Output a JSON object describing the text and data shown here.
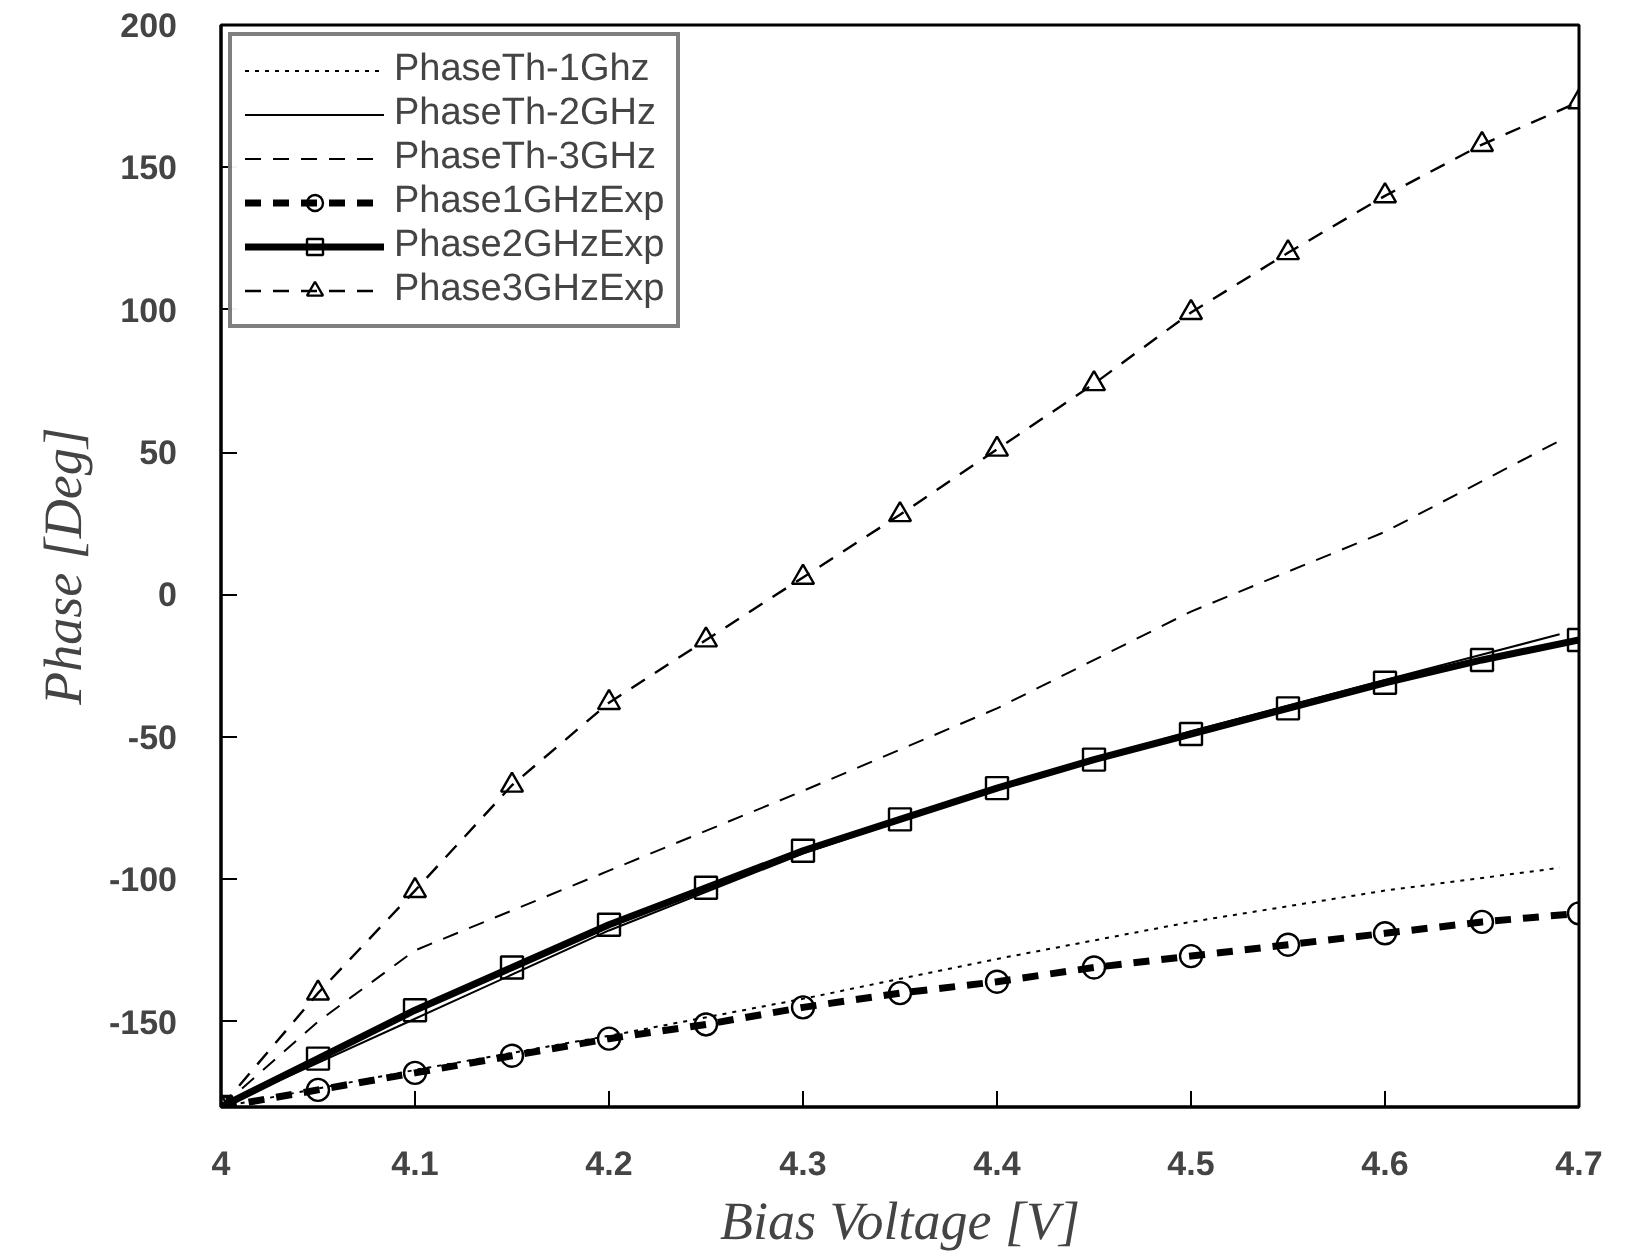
{
  "chart_data": {
    "type": "line",
    "xlabel": "Bias Voltage [V]",
    "ylabel": "Phase [Deg]",
    "x": [
      4.0,
      4.05,
      4.1,
      4.15,
      4.2,
      4.25,
      4.3,
      4.35,
      4.4,
      4.45,
      4.5,
      4.55,
      4.6,
      4.65,
      4.7
    ],
    "xlim": [
      4,
      4.7
    ],
    "xticks": [
      4,
      4.1,
      4.2,
      4.3,
      4.4,
      4.5,
      4.6,
      4.7
    ],
    "ylim": [
      -180,
      200
    ],
    "yticks": [
      -150,
      -100,
      -50,
      0,
      50,
      100,
      150,
      200
    ],
    "grid": false,
    "legend": "top left",
    "series": [
      {
        "name": "PhaseTh-1Ghz",
        "color": "#000000",
        "line_style": "dotted",
        "marker": "none",
        "x": [
          4.0,
          4.1,
          4.2,
          4.3,
          4.4,
          4.5,
          4.6,
          4.69
        ],
        "values": [
          -180,
          -167,
          -155,
          -142,
          -128,
          -115,
          -104,
          -96
        ]
      },
      {
        "name": "PhaseTh-2GHz",
        "color": "#000000",
        "line_style": "solid",
        "marker": "none",
        "x": [
          4.0,
          4.1,
          4.2,
          4.3,
          4.4,
          4.5,
          4.6,
          4.69
        ],
        "values": [
          -180,
          -149,
          -118,
          -91,
          -68,
          -48,
          -30,
          -14
        ]
      },
      {
        "name": "PhaseTh-3GHz",
        "color": "#000000",
        "line_style": "dashed",
        "marker": "none",
        "x": [
          4.0,
          4.05,
          4.1,
          4.2,
          4.3,
          4.4,
          4.5,
          4.6,
          4.69
        ],
        "values": [
          -180,
          -150,
          -125,
          -97,
          -69,
          -40,
          -6,
          22,
          54
        ]
      },
      {
        "name": "Phase1GHzExp",
        "color": "#000000",
        "line_style": "dashed",
        "marker": "circle",
        "values": [
          -180,
          -174,
          -168,
          -162,
          -156,
          -151,
          -145,
          -140,
          -136,
          -131,
          -127,
          -123,
          -119,
          -115,
          -112
        ]
      },
      {
        "name": "Phase2GHzExp",
        "color": "#000000",
        "line_style": "solid",
        "marker": "square",
        "values": [
          -180,
          -163,
          -146,
          -131,
          -116,
          -103,
          -90,
          -79,
          -68,
          -58,
          -49,
          -40,
          -31,
          -23,
          -16
        ]
      },
      {
        "name": "Phase3GHzExp",
        "color": "#000000",
        "line_style": "dashed",
        "marker": "triangle",
        "values": [
          -180,
          -140,
          -104,
          -67,
          -38,
          -16,
          6,
          28,
          51,
          74,
          99,
          120,
          140,
          158,
          173
        ]
      }
    ]
  }
}
